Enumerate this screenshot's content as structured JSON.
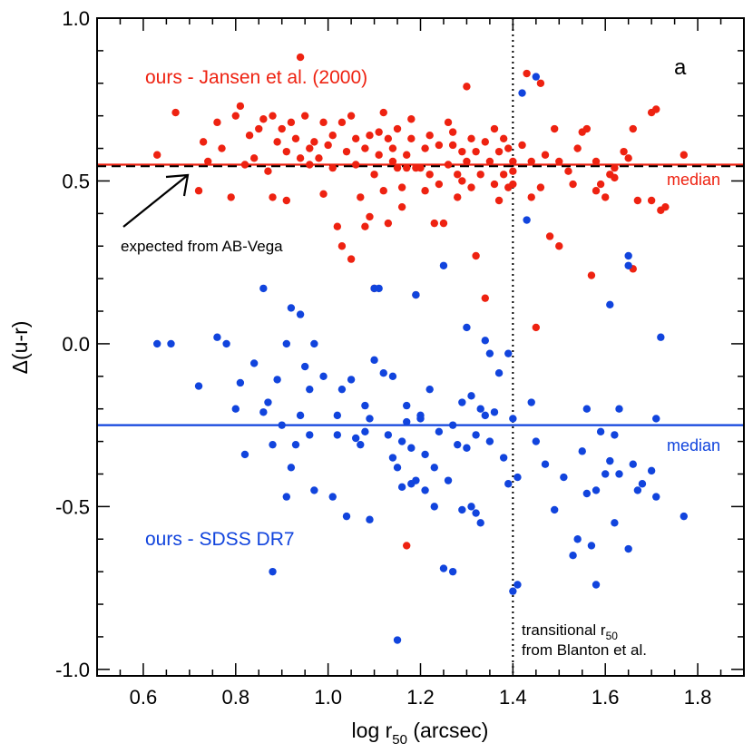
{
  "chart_data": {
    "type": "scatter",
    "panel_label": "a",
    "xlabel": "log r",
    "xlabel_sub": "50",
    "xlabel_unit": " (arcsec)",
    "ylabel": "Δ(u-r)",
    "xlim": [
      0.5,
      1.9
    ],
    "ylim": [
      -1.02,
      1.0
    ],
    "xticks": [
      0.6,
      0.8,
      1.0,
      1.2,
      1.4,
      1.6,
      1.8
    ],
    "xtick_labels": [
      "0.6",
      "0.8",
      "1.0",
      "1.2",
      "1.4",
      "1.6",
      "1.8"
    ],
    "yticks": [
      -1.0,
      -0.5,
      0.0,
      0.5,
      1.0
    ],
    "ytick_labels": [
      "-1.0",
      "-0.5",
      "0.0",
      "0.5",
      "1.0"
    ],
    "x_minor_step": 0.05,
    "y_minor_step": 0.1,
    "grid": false,
    "colors": {
      "red": "#ee2211",
      "blue": "#1144dd",
      "black": "#000000"
    },
    "reference_lines": [
      {
        "kind": "horizontal",
        "y": 0.55,
        "color": "#ee2211",
        "style": "solid",
        "label": "median"
      },
      {
        "kind": "horizontal",
        "y": -0.25,
        "color": "#1144dd",
        "style": "solid",
        "label": "median"
      },
      {
        "kind": "horizontal",
        "y": 0.545,
        "color": "#000000",
        "style": "dashed"
      },
      {
        "kind": "vertical",
        "x": 1.4,
        "color": "#000000",
        "style": "dotted"
      }
    ],
    "annotations": {
      "red_series_label": "ours - Jansen et al. (2000)",
      "blue_series_label": "ours - SDSS DR7",
      "expected_label": "expected from AB-Vega",
      "transitional_line1": "transitional r",
      "transitional_line1_sub": "50",
      "transitional_line2": "from Blanton et al."
    },
    "series": [
      {
        "color": "#ee2211",
        "points": [
          [
            0.63,
            0.58
          ],
          [
            0.67,
            0.71
          ],
          [
            0.72,
            0.47
          ],
          [
            0.73,
            0.62
          ],
          [
            0.74,
            0.56
          ],
          [
            0.76,
            0.68
          ],
          [
            0.77,
            0.6
          ],
          [
            0.79,
            0.45
          ],
          [
            0.8,
            0.7
          ],
          [
            0.81,
            0.73
          ],
          [
            0.82,
            0.55
          ],
          [
            0.83,
            0.64
          ],
          [
            0.84,
            0.57
          ],
          [
            0.85,
            0.66
          ],
          [
            0.86,
            0.69
          ],
          [
            0.87,
            0.53
          ],
          [
            0.88,
            0.45
          ],
          [
            0.88,
            0.7
          ],
          [
            0.89,
            0.62
          ],
          [
            0.9,
            0.66
          ],
          [
            0.91,
            0.44
          ],
          [
            0.91,
            0.59
          ],
          [
            0.92,
            0.68
          ],
          [
            0.93,
            0.63
          ],
          [
            0.94,
            0.57
          ],
          [
            0.94,
            0.88
          ],
          [
            0.95,
            0.7
          ],
          [
            0.96,
            0.6
          ],
          [
            0.96,
            0.55
          ],
          [
            0.97,
            0.62
          ],
          [
            0.98,
            0.57
          ],
          [
            0.99,
            0.46
          ],
          [
            0.99,
            0.68
          ],
          [
            1.0,
            0.61
          ],
          [
            1.01,
            0.54
          ],
          [
            1.01,
            0.64
          ],
          [
            1.02,
            0.36
          ],
          [
            1.03,
            0.3
          ],
          [
            1.03,
            0.68
          ],
          [
            1.04,
            0.59
          ],
          [
            1.05,
            0.26
          ],
          [
            1.05,
            0.7
          ],
          [
            1.06,
            0.63
          ],
          [
            1.06,
            0.55
          ],
          [
            1.07,
            0.45
          ],
          [
            1.08,
            0.6
          ],
          [
            1.08,
            0.36
          ],
          [
            1.09,
            0.64
          ],
          [
            1.09,
            0.39
          ],
          [
            1.1,
            0.17
          ],
          [
            1.1,
            0.52
          ],
          [
            1.11,
            0.65
          ],
          [
            1.11,
            0.58
          ],
          [
            1.12,
            0.71
          ],
          [
            1.12,
            0.47
          ],
          [
            1.13,
            0.63
          ],
          [
            1.13,
            0.37
          ],
          [
            1.14,
            0.56
          ],
          [
            1.14,
            0.6
          ],
          [
            1.15,
            0.54
          ],
          [
            1.15,
            0.66
          ],
          [
            1.16,
            0.48
          ],
          [
            1.16,
            0.42
          ],
          [
            1.17,
            0.58
          ],
          [
            1.17,
            0.54
          ],
          [
            1.18,
            0.63
          ],
          [
            1.18,
            0.69
          ],
          [
            1.19,
            0.54
          ],
          [
            1.19,
            0.15
          ],
          [
            1.2,
            0.54
          ],
          [
            1.21,
            0.6
          ],
          [
            1.21,
            0.47
          ],
          [
            1.22,
            0.64
          ],
          [
            1.22,
            0.52
          ],
          [
            1.23,
            0.37
          ],
          [
            1.24,
            0.61
          ],
          [
            1.24,
            0.49
          ],
          [
            1.25,
            0.37
          ],
          [
            1.26,
            0.55
          ],
          [
            1.26,
            0.68
          ],
          [
            1.27,
            0.61
          ],
          [
            1.27,
            0.65
          ],
          [
            1.28,
            0.52
          ],
          [
            1.28,
            0.45
          ],
          [
            1.29,
            0.59
          ],
          [
            1.29,
            0.5
          ],
          [
            1.3,
            0.79
          ],
          [
            1.3,
            0.56
          ],
          [
            1.31,
            0.63
          ],
          [
            1.31,
            0.48
          ],
          [
            1.32,
            0.59
          ],
          [
            1.32,
            0.27
          ],
          [
            1.33,
            0.52
          ],
          [
            1.34,
            0.62
          ],
          [
            1.34,
            0.14
          ],
          [
            1.35,
            0.56
          ],
          [
            1.36,
            0.49
          ],
          [
            1.36,
            0.66
          ],
          [
            1.37,
            0.59
          ],
          [
            1.37,
            0.44
          ],
          [
            1.38,
            0.52
          ],
          [
            1.38,
            0.63
          ],
          [
            1.39,
            0.6
          ],
          [
            1.39,
            0.48
          ],
          [
            1.4,
            0.53
          ],
          [
            1.4,
            0.49
          ],
          [
            1.4,
            0.56
          ],
          [
            1.42,
            0.61
          ],
          [
            1.43,
            0.83
          ],
          [
            1.44,
            0.56
          ],
          [
            1.44,
            0.45
          ],
          [
            1.45,
            0.05
          ],
          [
            1.46,
            0.8
          ],
          [
            1.46,
            0.48
          ],
          [
            1.47,
            0.58
          ],
          [
            1.48,
            0.33
          ],
          [
            1.49,
            0.66
          ],
          [
            1.5,
            0.56
          ],
          [
            1.5,
            0.3
          ],
          [
            1.52,
            0.53
          ],
          [
            1.53,
            0.49
          ],
          [
            1.54,
            0.6
          ],
          [
            1.55,
            0.65
          ],
          [
            1.56,
            0.66
          ],
          [
            1.57,
            0.21
          ],
          [
            1.58,
            0.56
          ],
          [
            1.58,
            0.47
          ],
          [
            1.59,
            0.49
          ],
          [
            1.6,
            0.45
          ],
          [
            1.61,
            0.52
          ],
          [
            1.62,
            0.51
          ],
          [
            1.62,
            0.54
          ],
          [
            1.64,
            0.59
          ],
          [
            1.65,
            0.57
          ],
          [
            1.66,
            0.23
          ],
          [
            1.66,
            0.66
          ],
          [
            1.67,
            0.44
          ],
          [
            1.7,
            0.71
          ],
          [
            1.71,
            0.72
          ],
          [
            1.72,
            0.41
          ],
          [
            1.73,
            0.42
          ],
          [
            1.77,
            0.58
          ],
          [
            1.7,
            0.44
          ],
          [
            1.17,
            -0.62
          ]
        ]
      },
      {
        "color": "#1144dd",
        "points": [
          [
            0.63,
            0.0
          ],
          [
            0.66,
            0.0
          ],
          [
            0.72,
            -0.13
          ],
          [
            0.76,
            0.02
          ],
          [
            0.78,
            0.0
          ],
          [
            0.8,
            -0.2
          ],
          [
            0.81,
            -0.12
          ],
          [
            0.82,
            -0.34
          ],
          [
            0.84,
            -0.06
          ],
          [
            0.86,
            0.17
          ],
          [
            0.86,
            -0.21
          ],
          [
            0.87,
            -0.18
          ],
          [
            0.88,
            -0.31
          ],
          [
            0.88,
            -0.7
          ],
          [
            0.89,
            -0.11
          ],
          [
            0.9,
            -0.25
          ],
          [
            0.91,
            0.0
          ],
          [
            0.91,
            -0.47
          ],
          [
            0.92,
            0.11
          ],
          [
            0.92,
            -0.38
          ],
          [
            0.93,
            -0.31
          ],
          [
            0.94,
            -0.22
          ],
          [
            0.94,
            0.09
          ],
          [
            0.95,
            -0.07
          ],
          [
            0.96,
            -0.14
          ],
          [
            0.96,
            -0.28
          ],
          [
            0.97,
            -0.45
          ],
          [
            0.97,
            0.0
          ],
          [
            0.99,
            -0.1
          ],
          [
            1.01,
            -0.47
          ],
          [
            1.02,
            -0.22
          ],
          [
            1.02,
            -0.28
          ],
          [
            1.03,
            -0.14
          ],
          [
            1.04,
            -0.53
          ],
          [
            1.05,
            -0.11
          ],
          [
            1.06,
            -0.29
          ],
          [
            1.07,
            -0.31
          ],
          [
            1.08,
            -0.19
          ],
          [
            1.08,
            -0.27
          ],
          [
            1.09,
            -0.23
          ],
          [
            1.09,
            -0.54
          ],
          [
            1.1,
            0.17
          ],
          [
            1.1,
            -0.05
          ],
          [
            1.11,
            0.17
          ],
          [
            1.12,
            -0.09
          ],
          [
            1.13,
            -0.28
          ],
          [
            1.14,
            -0.35
          ],
          [
            1.14,
            -0.1
          ],
          [
            1.15,
            -0.38
          ],
          [
            1.15,
            -0.91
          ],
          [
            1.16,
            -0.3
          ],
          [
            1.16,
            -0.44
          ],
          [
            1.17,
            -0.19
          ],
          [
            1.17,
            -0.24
          ],
          [
            1.18,
            -0.43
          ],
          [
            1.18,
            -0.32
          ],
          [
            1.19,
            0.15
          ],
          [
            1.19,
            -0.42
          ],
          [
            1.2,
            -0.23
          ],
          [
            1.2,
            -0.22
          ],
          [
            1.21,
            -0.45
          ],
          [
            1.21,
            -0.34
          ],
          [
            1.22,
            -0.14
          ],
          [
            1.23,
            -0.38
          ],
          [
            1.23,
            -0.5
          ],
          [
            1.24,
            -0.27
          ],
          [
            1.25,
            0.24
          ],
          [
            1.25,
            -0.69
          ],
          [
            1.26,
            -0.42
          ],
          [
            1.27,
            -0.25
          ],
          [
            1.27,
            -0.7
          ],
          [
            1.28,
            -0.31
          ],
          [
            1.29,
            -0.18
          ],
          [
            1.29,
            -0.51
          ],
          [
            1.3,
            0.05
          ],
          [
            1.3,
            -0.32
          ],
          [
            1.31,
            -0.16
          ],
          [
            1.31,
            -0.5
          ],
          [
            1.32,
            -0.28
          ],
          [
            1.32,
            -0.52
          ],
          [
            1.33,
            -0.55
          ],
          [
            1.33,
            -0.2
          ],
          [
            1.34,
            0.01
          ],
          [
            1.34,
            -0.22
          ],
          [
            1.35,
            -0.03
          ],
          [
            1.35,
            -0.3
          ],
          [
            1.36,
            -0.21
          ],
          [
            1.37,
            -0.09
          ],
          [
            1.38,
            -0.35
          ],
          [
            1.39,
            -0.03
          ],
          [
            1.39,
            -0.43
          ],
          [
            1.4,
            -0.23
          ],
          [
            1.4,
            -0.76
          ],
          [
            1.41,
            -0.41
          ],
          [
            1.41,
            -0.74
          ],
          [
            1.42,
            0.77
          ],
          [
            1.43,
            0.38
          ],
          [
            1.44,
            -0.18
          ],
          [
            1.45,
            -0.3
          ],
          [
            1.45,
            0.82
          ],
          [
            1.47,
            -0.37
          ],
          [
            1.49,
            -0.51
          ],
          [
            1.51,
            -0.41
          ],
          [
            1.53,
            -0.65
          ],
          [
            1.54,
            -0.6
          ],
          [
            1.55,
            -0.33
          ],
          [
            1.56,
            -0.46
          ],
          [
            1.57,
            -0.62
          ],
          [
            1.58,
            -0.45
          ],
          [
            1.58,
            -0.74
          ],
          [
            1.59,
            -0.27
          ],
          [
            1.6,
            -0.4
          ],
          [
            1.61,
            0.12
          ],
          [
            1.61,
            -0.36
          ],
          [
            1.62,
            -0.28
          ],
          [
            1.62,
            -0.55
          ],
          [
            1.63,
            -0.4
          ],
          [
            1.63,
            -0.2
          ],
          [
            1.65,
            0.27
          ],
          [
            1.65,
            0.24
          ],
          [
            1.66,
            -0.37
          ],
          [
            1.67,
            -0.45
          ],
          [
            1.68,
            -0.43
          ],
          [
            1.7,
            -0.39
          ],
          [
            1.71,
            -0.23
          ],
          [
            1.71,
            -0.47
          ],
          [
            1.72,
            0.02
          ],
          [
            1.77,
            -0.53
          ],
          [
            1.65,
            -0.63
          ],
          [
            1.56,
            -0.2
          ]
        ]
      }
    ]
  }
}
